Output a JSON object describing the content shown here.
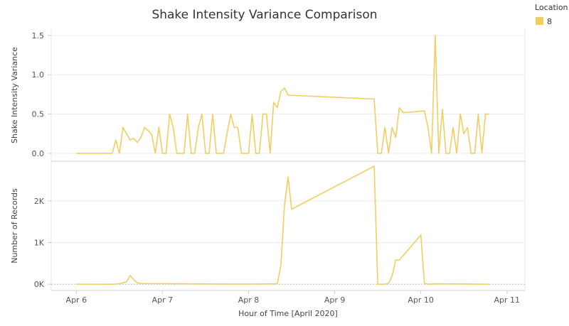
{
  "chart_data": {
    "type": "line",
    "title": "Shake Intensity Variance Comparison",
    "xlabel": "Hour of Time [April 2020]",
    "x_ticks": [
      "Apr 6",
      "Apr 7",
      "Apr 8",
      "Apr 9",
      "Apr 10",
      "Apr 11"
    ],
    "x_tick_values": [
      0,
      24,
      48,
      72,
      96,
      120
    ],
    "x_unit": "hours since Apr 6 00:00",
    "legend": {
      "title": "Location",
      "position": "top-right",
      "entries": [
        {
          "label": "8",
          "color": "#f1ce63"
        }
      ]
    },
    "series_color": "#f1ce63",
    "grid": true,
    "panels": [
      {
        "name": "variance",
        "ylabel": "Shake Intensity Variance",
        "ylim": [
          -0.1,
          1.58
        ],
        "y_ticks": [
          0.0,
          0.5,
          1.0,
          1.5
        ],
        "y_tick_labels": [
          "0.0",
          "0.5",
          "1.0",
          "1.5"
        ],
        "x": [
          0,
          10,
          11,
          12,
          13,
          14,
          15,
          16,
          17,
          18,
          19,
          20,
          21,
          22,
          23,
          24,
          25,
          26,
          27,
          28,
          29,
          30,
          31,
          32,
          33,
          34,
          35,
          36,
          37,
          38,
          39,
          40,
          41,
          42,
          43,
          44,
          45,
          46,
          47,
          48,
          49,
          50,
          51,
          52,
          53,
          54,
          55,
          56,
          57,
          58,
          59,
          83,
          84,
          85,
          86,
          87,
          88,
          89,
          90,
          91,
          92,
          97,
          98,
          99,
          100,
          101,
          102,
          103,
          104,
          105,
          106,
          107,
          108,
          109,
          110,
          111,
          112,
          113,
          114,
          115
        ],
        "y": [
          0,
          0,
          0.17,
          0,
          0.33,
          0.25,
          0.17,
          0.19,
          0.14,
          0.2,
          0.33,
          0.29,
          0.24,
          0,
          0.33,
          0,
          0,
          0.5,
          0.33,
          0,
          0,
          0,
          0.5,
          0,
          0,
          0.33,
          0.5,
          0,
          0,
          0.5,
          0,
          0,
          0,
          0.25,
          0.5,
          0.33,
          0.33,
          0,
          0,
          0,
          0.5,
          0,
          0,
          0.5,
          0.5,
          0,
          0.65,
          0.58,
          0.79,
          0.83,
          0.74,
          0.69,
          0,
          0,
          0.33,
          0,
          0.33,
          0.2,
          0.58,
          0.52,
          0.52,
          0.54,
          0.33,
          0,
          1.5,
          0,
          0.56,
          0,
          0,
          0.33,
          0,
          0.5,
          0.25,
          0.33,
          0,
          0,
          0.5,
          0,
          0.5,
          0.5
        ]
      },
      {
        "name": "records",
        "ylabel": "Number of Records",
        "ylim": [
          -150,
          2950
        ],
        "y_ticks": [
          0,
          1000,
          2000
        ],
        "y_tick_labels": [
          "0K",
          "1K",
          "2K"
        ],
        "x": [
          0,
          10,
          12,
          14,
          15,
          16,
          17,
          18,
          20,
          30,
          40,
          50,
          56,
          57,
          58,
          59,
          60,
          83,
          84,
          85,
          86,
          87,
          88,
          89,
          90,
          96,
          97,
          98,
          100,
          110,
          115
        ],
        "y": [
          0,
          0,
          10,
          60,
          210,
          110,
          30,
          20,
          15,
          10,
          5,
          5,
          10,
          450,
          1900,
          2570,
          1800,
          2830,
          0,
          0,
          0,
          20,
          200,
          580,
          580,
          1180,
          20,
          0,
          10,
          5,
          0
        ]
      }
    ]
  }
}
